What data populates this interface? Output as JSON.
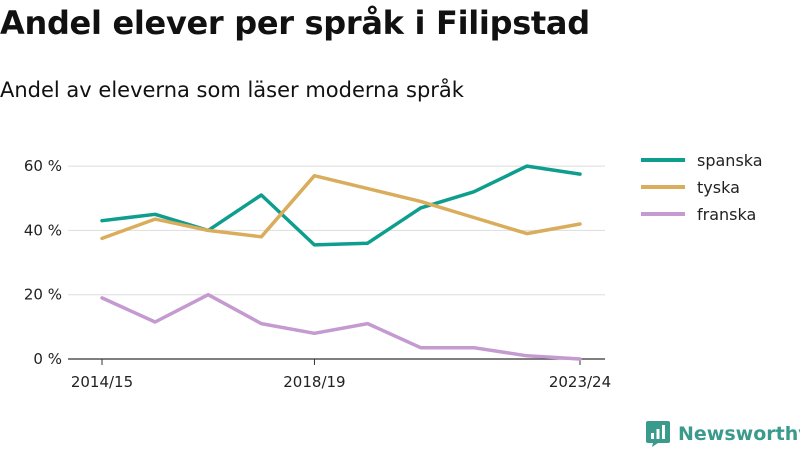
{
  "header": {
    "title": "Andel elever per språk i Filipstad",
    "subtitle": "Andel av eleverna som läser moderna språk"
  },
  "brand": {
    "name": "Newsworthy",
    "icon": "newsworthy-logo-icon",
    "color": "#3a9a8c"
  },
  "chart_data": {
    "type": "line",
    "x": [
      "2014/15",
      "2015/16",
      "2016/17",
      "2017/18",
      "2018/19",
      "2019/20",
      "2020/21",
      "2021/22",
      "2022/23",
      "2023/24"
    ],
    "x_tick_labels": [
      "2014/15",
      "2018/19",
      "2023/24"
    ],
    "y_ticks": [
      0,
      20,
      40,
      60
    ],
    "y_tick_labels": [
      "0 %",
      "20 %",
      "40 %",
      "60 %"
    ],
    "ylim": [
      0,
      65
    ],
    "grid": true,
    "legend_position": "right",
    "series": [
      {
        "name": "spanska",
        "color": "#0e9e8e",
        "values": [
          43,
          45,
          40,
          51,
          35.5,
          36,
          47,
          52,
          60,
          57.5
        ]
      },
      {
        "name": "tyska",
        "color": "#d9ad5b",
        "values": [
          37.5,
          43.5,
          40,
          38,
          57,
          53,
          49,
          44,
          39,
          42
        ]
      },
      {
        "name": "franska",
        "color": "#c49ad0",
        "values": [
          19,
          11.5,
          20,
          11,
          8,
          11,
          3.5,
          3.5,
          1,
          0
        ]
      }
    ]
  }
}
